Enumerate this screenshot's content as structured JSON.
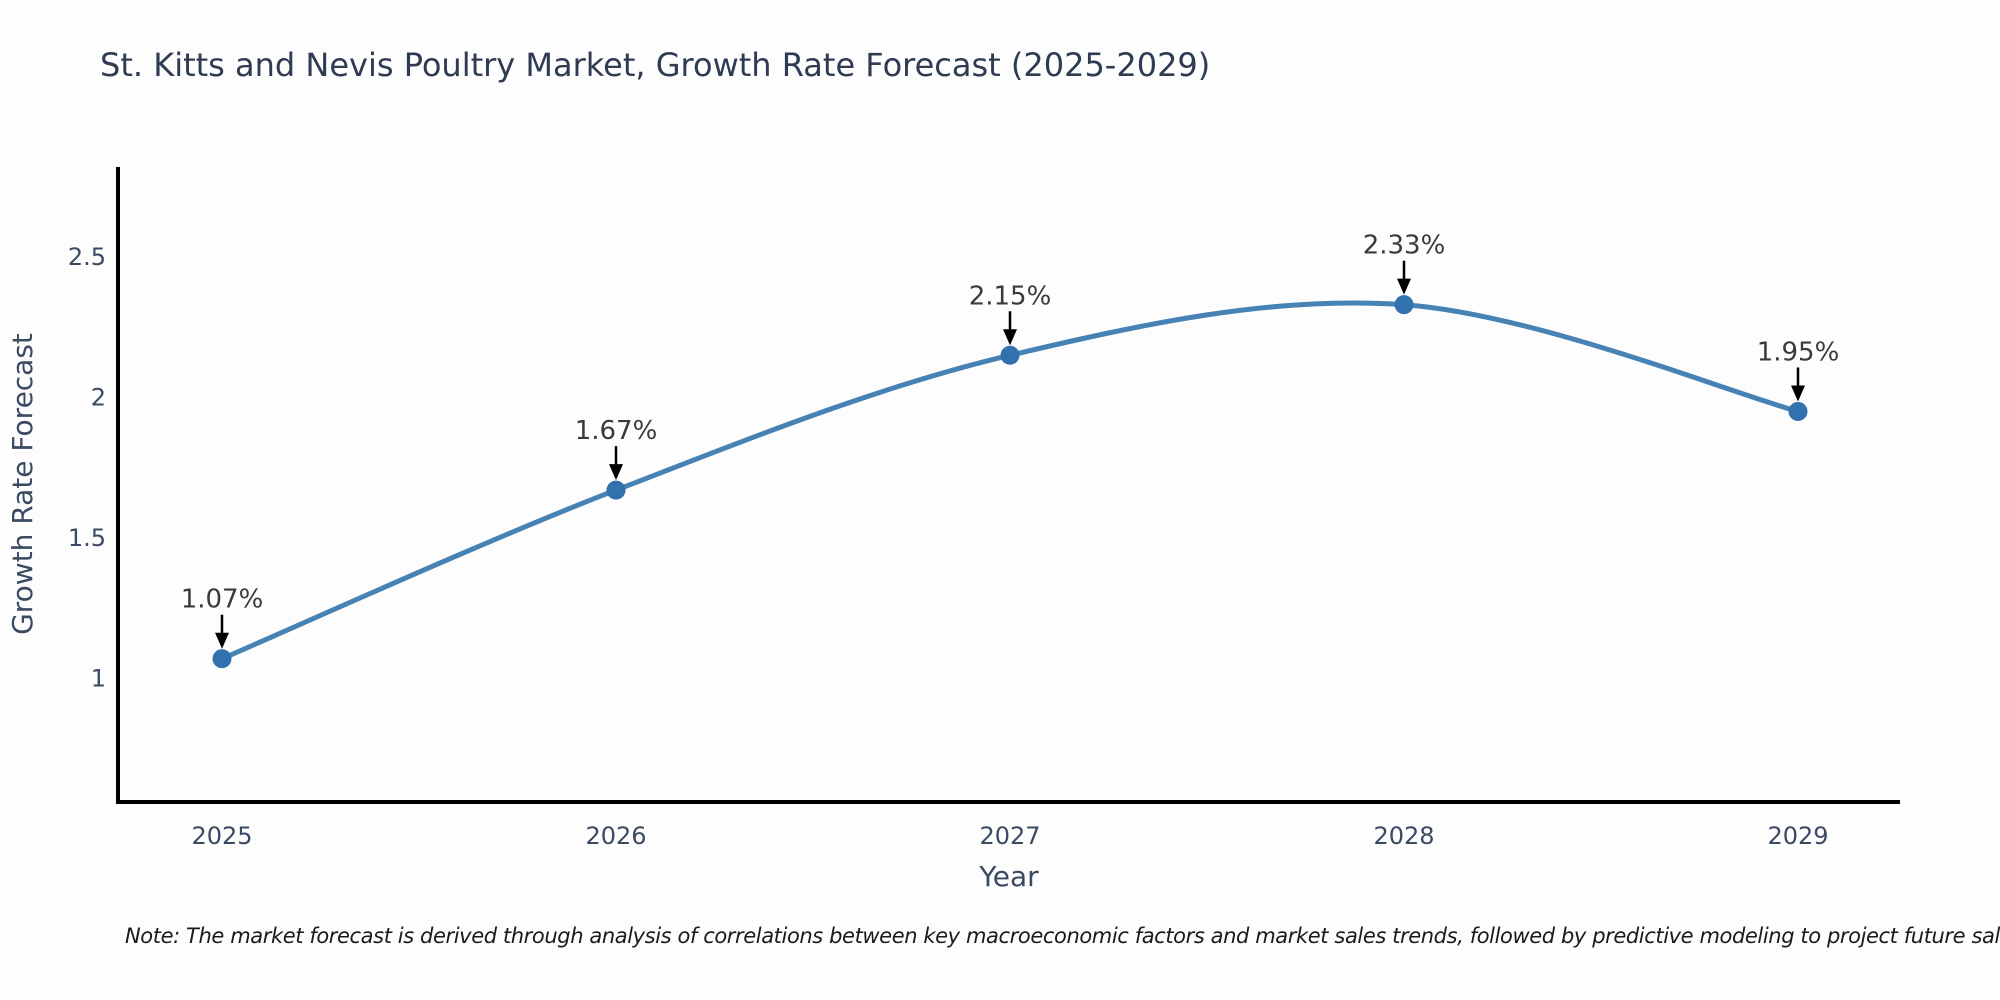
{
  "title": "St. Kitts and Nevis Poultry Market, Growth Rate Forecast (2025-2029)",
  "note": "Note: The market forecast is derived through analysis of correlations between key macroeconomic factors and market sales trends, followed by predictive modeling to project future sales",
  "chart_data": {
    "type": "line",
    "title": "St. Kitts and Nevis Poultry Market, Growth Rate Forecast (2025-2029)",
    "x": [
      2025,
      2026,
      2027,
      2028,
      2029
    ],
    "xticklabels": [
      "2025",
      "2026",
      "2027",
      "2028",
      "2029"
    ],
    "series": [
      {
        "name": "Growth Rate Forecast",
        "values": [
          1.07,
          1.67,
          2.15,
          2.33,
          1.95
        ]
      }
    ],
    "point_labels": [
      "1.07%",
      "1.67%",
      "2.15%",
      "2.33%",
      "1.95%"
    ],
    "xlabel": "Year",
    "ylabel": "Growth Rate Forecast",
    "ytick_values": [
      1,
      1.5,
      2,
      2.5
    ],
    "ytick_labels": [
      "1",
      "1.5",
      "2",
      "2.5"
    ],
    "ylim": [
      0.56,
      2.82
    ],
    "grid": false,
    "legend": "none",
    "smoothing": "spline",
    "annotation_style": "value-label with black down arrow to marker"
  },
  "colors": {
    "background": "#fdfdfe",
    "title_text": "#2e3b52",
    "tick_text": "#3b4a63",
    "line": "#4682b4",
    "marker": "#3171ad",
    "axis_spine": "#000000",
    "annotation_text": "#3a3a3a",
    "annotation_arrow": "#000000",
    "note_text": "#1a1a1a"
  }
}
